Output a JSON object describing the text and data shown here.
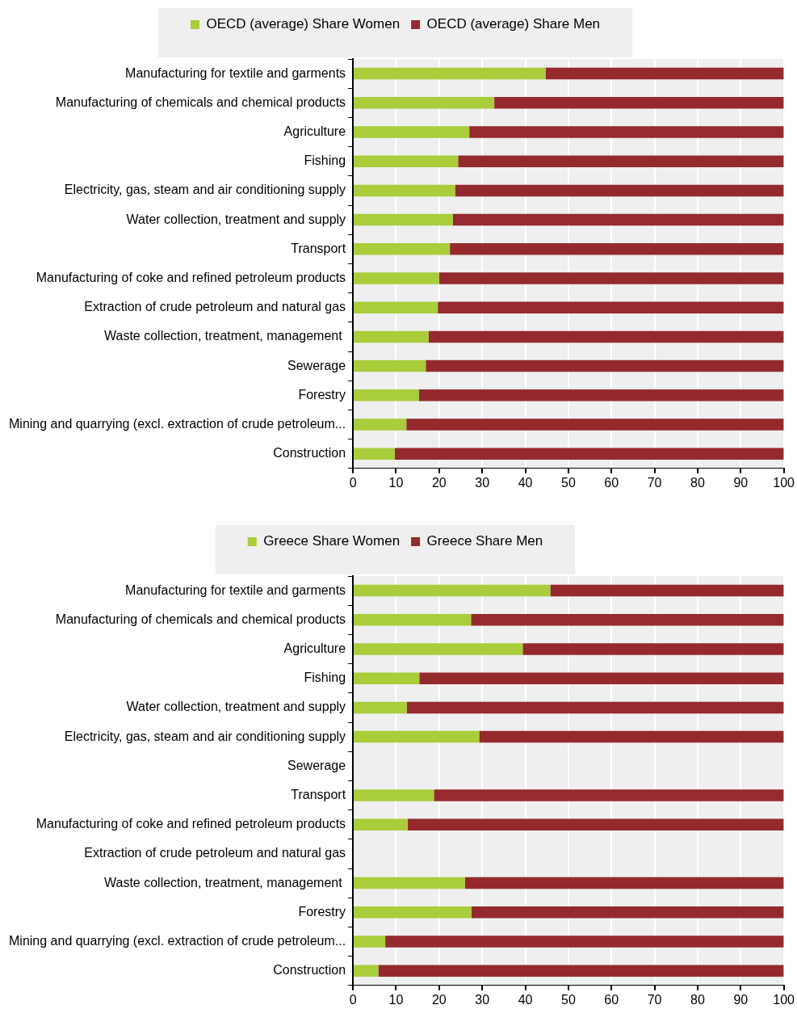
{
  "chart_data": [
    {
      "type": "bar",
      "orientation": "horizontal",
      "stacked": true,
      "legend": "top",
      "grid": "x",
      "categories": [
        "Manufacturing for textile and garments",
        "Manufacturing of chemicals and chemical products",
        "Agriculture",
        "Fishing",
        "Electricity, gas, steam and air conditioning supply",
        "Water collection, treatment and supply",
        "Transport",
        "Manufacturing of coke and refined petroleum products",
        "Extraction of crude petroleum and natural gas",
        "Waste collection, treatment, management ",
        "Sewerage",
        "Forestry",
        "Mining and quarrying (excl. extraction of crude petroleum...",
        "Construction"
      ],
      "series": [
        {
          "name": "OECD (average) Share Women",
          "color": "#a9cd3b",
          "values": [
            44.7,
            32.8,
            27.0,
            24.4,
            23.7,
            23.2,
            22.5,
            20.0,
            19.7,
            17.6,
            16.9,
            15.3,
            12.4,
            9.7
          ]
        },
        {
          "name": "OECD (average) Share Men",
          "color": "#952a2e",
          "values": [
            55.3,
            67.2,
            73.0,
            75.6,
            76.3,
            76.8,
            77.5,
            80.0,
            80.3,
            82.4,
            83.1,
            84.7,
            87.6,
            90.3
          ]
        }
      ],
      "xlim": [
        0,
        100
      ],
      "xticks": [
        0,
        10,
        20,
        30,
        40,
        50,
        60,
        70,
        80,
        90,
        100
      ]
    },
    {
      "type": "bar",
      "orientation": "horizontal",
      "stacked": true,
      "legend": "top",
      "grid": "x",
      "categories": [
        "Manufacturing for textile and garments",
        "Manufacturing of chemicals and chemical products",
        "Agriculture",
        "Fishing",
        "Water collection, treatment and supply",
        "Electricity, gas, steam and air conditioning supply",
        "Sewerage",
        "Transport",
        "Manufacturing of coke and refined petroleum products",
        "Extraction of crude petroleum and natural gas",
        "Waste collection, treatment, management ",
        "Forestry",
        "Mining and quarrying (excl. extraction of crude petroleum...",
        "Construction"
      ],
      "series": [
        {
          "name": "Greece Share Women",
          "color": "#a9cd3b",
          "values": [
            45.8,
            27.4,
            39.4,
            15.4,
            12.5,
            29.3,
            null,
            18.8,
            12.7,
            null,
            26.0,
            27.5,
            7.5,
            5.9
          ]
        },
        {
          "name": "Greece Share Men",
          "color": "#952a2e",
          "values": [
            54.2,
            72.6,
            60.6,
            84.6,
            87.5,
            70.7,
            null,
            81.2,
            87.3,
            null,
            74.0,
            72.5,
            92.5,
            94.1
          ]
        }
      ],
      "xlim": [
        0,
        100
      ],
      "xticks": [
        0,
        10,
        20,
        30,
        40,
        50,
        60,
        70,
        80,
        90,
        100
      ]
    }
  ]
}
